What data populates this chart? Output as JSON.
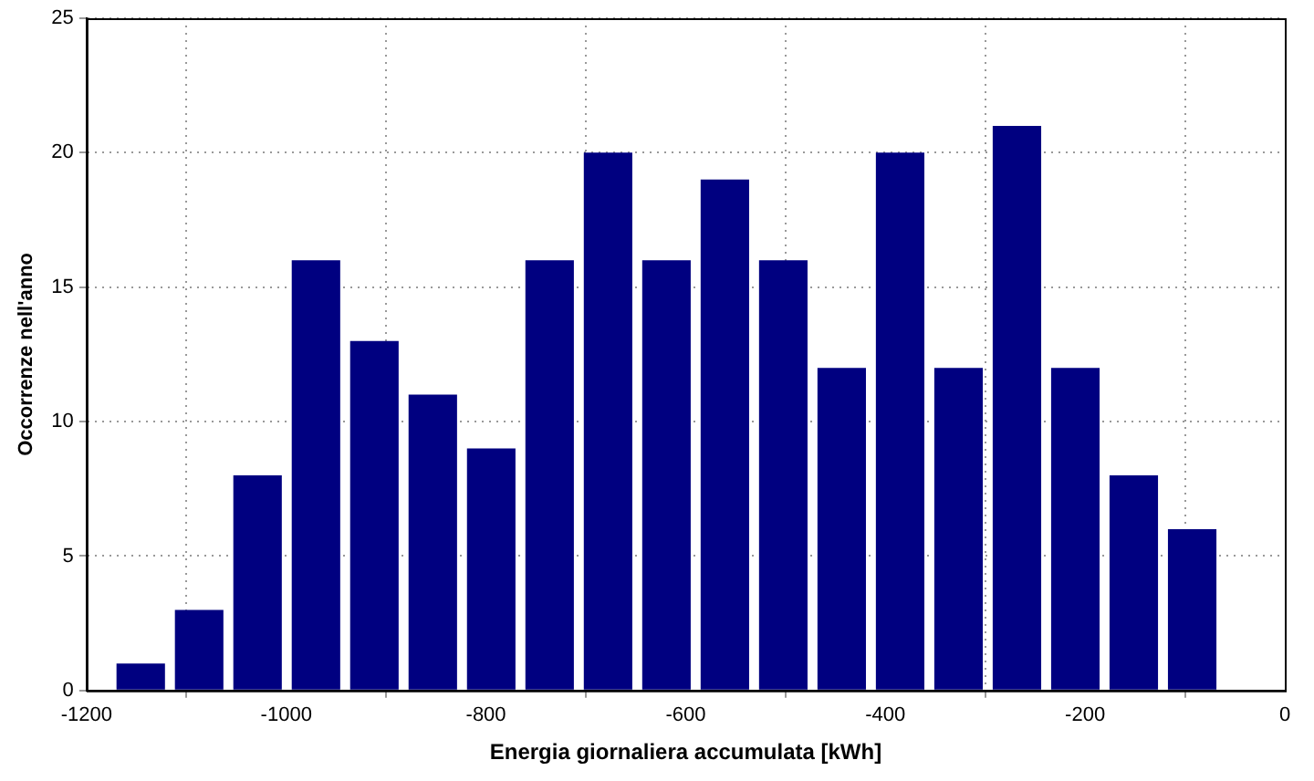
{
  "chart_data": {
    "type": "histogram",
    "xlabel": "Energia giornaliera accumulata [kWh]",
    "ylabel": "Occorrenze nell'anno",
    "bins": [
      -1175,
      -1116.5,
      -1058,
      -999.5,
      -941,
      -882.5,
      -824,
      -765.5,
      -707,
      -648.5,
      -590,
      -531.5,
      -473,
      -414.5,
      -356,
      -297.5,
      -239,
      -180.5,
      -122,
      -63.5
    ],
    "values": [
      1,
      3,
      8,
      16,
      13,
      11,
      9,
      16,
      20,
      16,
      19,
      16,
      12,
      20,
      12,
      21,
      12,
      8,
      6
    ],
    "color": "#000080",
    "xlim": [
      -1200,
      0
    ],
    "xticks": [
      -1200,
      -1000,
      -800,
      -600,
      -400,
      -200,
      0
    ],
    "ylim": [
      0,
      25
    ],
    "yticks": [
      0,
      5,
      10,
      15,
      20,
      25
    ],
    "grid": true
  }
}
